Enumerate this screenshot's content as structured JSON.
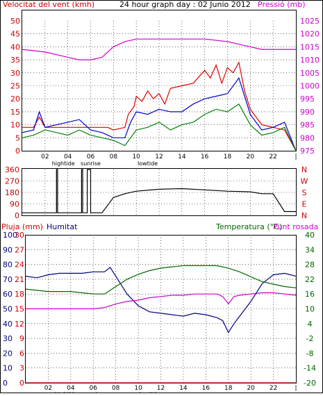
{
  "colors": {
    "frame": "#000000",
    "grid": "#000000",
    "wind_label": "#cc0000",
    "pressure": "#cc00cc",
    "rain": "#cc0000",
    "humidity": "#000080",
    "temperature": "#006600",
    "dewpoint": "#cc00cc",
    "wind_avg": "#0000cc",
    "wind_gust": "#dd0000",
    "wind_low": "#008000"
  },
  "header": {
    "wind_label": "Velocitat del vent (kmh)",
    "title": "24 hour graph day : 02 Junio 2012",
    "pressure_label": "Pressió (mb)"
  },
  "legend_bottom": {
    "rain_label": "Pluja (mm)",
    "humidity_label": "Humitat",
    "temperature_label": "Temperatura (°C)",
    "dewpoint_label": "Punt rosada"
  },
  "time_axis": {
    "ticks": [
      "02",
      "04",
      "06",
      "08",
      "10",
      "12",
      "14",
      "16",
      "18",
      "20",
      "22"
    ],
    "markers": [
      {
        "label": "hightide",
        "hour": 3.6
      },
      {
        "label": "sunrise",
        "hour": 6.0
      },
      {
        "label": "lowtide",
        "hour": 11.0
      }
    ]
  },
  "chart_data": [
    {
      "type": "line",
      "title": "Velocitat del vent (kmh)",
      "x_range_hours": [
        0,
        24
      ],
      "ylim_left": [
        0,
        50
      ],
      "yticks_left": [
        0,
        5,
        10,
        15,
        20,
        25,
        30,
        35,
        40,
        45,
        50
      ],
      "ylim_right": [
        975,
        1025
      ],
      "yticks_right": [
        975,
        980,
        985,
        990,
        995,
        1000,
        1005,
        1010,
        1015,
        1020,
        1025
      ],
      "grid": true,
      "series": [
        {
          "key": "pressure",
          "axis": "right",
          "x": [
            0,
            2,
            4,
            5,
            6,
            7,
            8,
            9,
            10,
            12,
            14,
            16,
            18,
            19,
            20,
            21,
            22,
            23,
            24
          ],
          "y": [
            1014,
            1013,
            1011,
            1010,
            1010,
            1011,
            1015,
            1017,
            1018,
            1018,
            1018,
            1018,
            1017,
            1016,
            1015,
            1014,
            1014,
            1014,
            1014
          ]
        },
        {
          "key": "wind_gust",
          "axis": "left",
          "x": [
            0,
            1,
            1.5,
            2,
            3,
            4,
            5,
            6,
            7,
            7.5,
            8,
            9,
            9.3,
            9.8,
            10,
            10.5,
            11,
            11.5,
            12,
            12.5,
            13,
            14,
            15,
            16,
            16.5,
            17,
            17.5,
            18,
            18.5,
            19,
            19.5,
            20,
            21,
            22,
            23,
            24
          ],
          "y": [
            9,
            9,
            13,
            9,
            9,
            9,
            9,
            9,
            9,
            9,
            8,
            9,
            14,
            17,
            21,
            19,
            23,
            20,
            22,
            18,
            24,
            25,
            26,
            31,
            28,
            33,
            26,
            32,
            30,
            34,
            23,
            16,
            10,
            9,
            8,
            0
          ]
        },
        {
          "key": "wind_avg",
          "axis": "left",
          "x": [
            0,
            1,
            1.5,
            2,
            3,
            4,
            5,
            6,
            7,
            7.5,
            8,
            9,
            9.5,
            10,
            11,
            12,
            13,
            14,
            15,
            16,
            17,
            18,
            19,
            20,
            21,
            22,
            23,
            24
          ],
          "y": [
            7,
            8,
            15,
            9,
            10,
            11,
            12,
            8,
            7,
            6,
            5,
            5,
            11,
            15,
            14,
            16,
            15,
            15,
            18,
            20,
            21,
            22,
            28,
            14,
            8,
            9,
            11,
            0
          ]
        },
        {
          "key": "wind_low",
          "axis": "left",
          "x": [
            0,
            1,
            2,
            3,
            4,
            5,
            6,
            7,
            8,
            9,
            10,
            11,
            12,
            13,
            14,
            15,
            16,
            17,
            18,
            19,
            20,
            21,
            22,
            23,
            24
          ],
          "y": [
            5,
            6,
            8,
            7,
            6,
            8,
            6,
            5,
            4,
            2,
            8,
            9,
            11,
            8,
            10,
            11,
            14,
            16,
            15,
            18,
            10,
            6,
            7,
            9,
            0
          ]
        }
      ]
    },
    {
      "type": "line",
      "title": "Direcció del vent",
      "x_range_hours": [
        0,
        24
      ],
      "ylim": [
        0,
        360
      ],
      "yticks": [
        0,
        90,
        180,
        270,
        360
      ],
      "compass_labels": [
        "N",
        "W",
        "S",
        "E",
        "N"
      ],
      "grid": true,
      "series": [
        {
          "key": "wind_dir",
          "x": [
            0,
            3.0,
            3.0,
            3.1,
            3.1,
            5.2,
            5.2,
            5.3,
            5.3,
            5.7,
            5.7,
            6.0,
            6.0,
            7.0,
            8.0,
            9.0,
            10,
            12,
            14,
            16,
            18,
            20,
            21,
            22,
            22.5,
            23,
            24
          ],
          "y": [
            20,
            20,
            360,
            360,
            20,
            20,
            360,
            360,
            20,
            20,
            360,
            360,
            20,
            20,
            140,
            170,
            190,
            205,
            210,
            200,
            190,
            185,
            170,
            170,
            100,
            30,
            30
          ]
        }
      ]
    },
    {
      "type": "line",
      "title": "Pluja, Humitat, Temperatura",
      "x_range_hours": [
        0,
        24
      ],
      "ylim_rain": [
        0,
        30
      ],
      "yticks_rain": [
        0,
        3,
        6,
        9,
        12,
        15,
        18,
        21,
        24,
        27,
        30
      ],
      "ylim_humidity": [
        0,
        100
      ],
      "yticks_humidity": [
        0,
        10,
        20,
        30,
        40,
        50,
        60,
        70,
        80,
        90,
        100
      ],
      "ylim_temp": [
        -20,
        40
      ],
      "yticks_temp": [
        -20,
        -14,
        -8,
        -2,
        4,
        10,
        16,
        22,
        28,
        34,
        40
      ],
      "grid": true,
      "series": [
        {
          "key": "rain",
          "axis": "rain",
          "x": [
            0,
            24
          ],
          "y": [
            0,
            0
          ]
        },
        {
          "key": "humidity",
          "axis": "humidity",
          "x": [
            0,
            1,
            2,
            3,
            4,
            5,
            6,
            7,
            7.5,
            8,
            8.5,
            9,
            10,
            11,
            12,
            13,
            14,
            15,
            16,
            17,
            17.5,
            18,
            18.5,
            19,
            20,
            21,
            22,
            23,
            24
          ],
          "y": [
            72,
            71,
            73,
            74,
            74,
            74,
            75,
            75,
            78,
            72,
            66,
            60,
            52,
            48,
            47,
            46,
            45,
            47,
            46,
            44,
            42,
            34,
            40,
            45,
            55,
            67,
            73,
            74,
            72
          ]
        },
        {
          "key": "temperature",
          "axis": "temp",
          "x": [
            0,
            2,
            4,
            6,
            7,
            8,
            9,
            10,
            11,
            12,
            13,
            14,
            15,
            16,
            17,
            18,
            19,
            20,
            21,
            22,
            23,
            24
          ],
          "y": [
            18,
            17,
            17,
            16,
            16,
            19,
            22,
            24,
            25.5,
            26.5,
            27,
            27.5,
            27.5,
            27.5,
            27.5,
            26.5,
            25,
            23,
            21,
            20,
            19,
            18.5
          ]
        },
        {
          "key": "dewpoint",
          "axis": "temp",
          "x": [
            0,
            2,
            4,
            6,
            7,
            8,
            9,
            10,
            11,
            12,
            13,
            14,
            15,
            16,
            17,
            17.5,
            18,
            18.5,
            19,
            20,
            21,
            22,
            23,
            24
          ],
          "y": [
            10,
            10,
            10,
            10,
            10.5,
            12,
            13,
            13.5,
            14.5,
            15,
            15.5,
            15.5,
            16,
            16,
            16,
            15,
            12,
            15,
            15.5,
            16,
            16.5,
            16.5,
            16,
            15.5
          ]
        }
      ]
    }
  ]
}
